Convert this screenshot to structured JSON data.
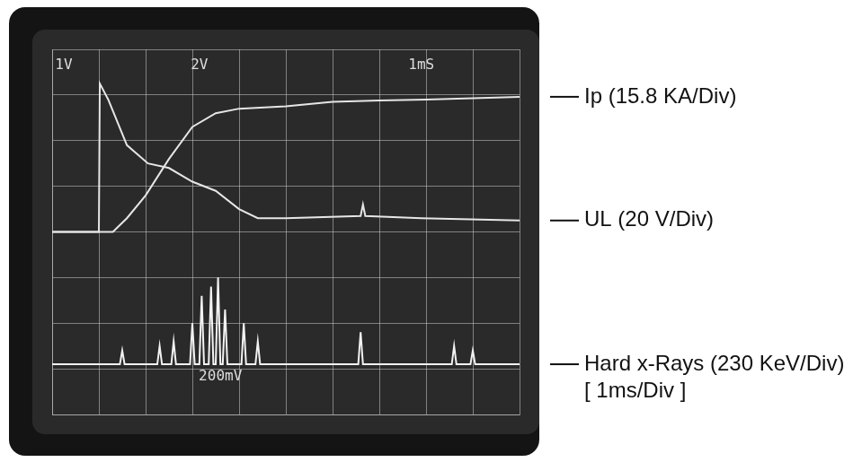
{
  "chart_data": {
    "type": "line",
    "xlim": [
      0,
      10
    ],
    "xticks": [
      0,
      1,
      2,
      3,
      4,
      5,
      6,
      7,
      8,
      9,
      10
    ],
    "ylim": [
      0,
      8
    ],
    "yticks": [
      0,
      1,
      2,
      3,
      4,
      5,
      6,
      7,
      8
    ],
    "grid": true,
    "tick_labels": false,
    "legend": "right",
    "annotations": [
      "1V",
      "2V",
      "1mS",
      "200mV",
      "[ 1ms/Div ]"
    ],
    "series": [
      {
        "name": "Ip (15.8 KA/Div)",
        "color": "#e6e6e6",
        "x": [
          0,
          1.3,
          1.6,
          2,
          2.5,
          3,
          3.5,
          4,
          5,
          6,
          7,
          8,
          10
        ],
        "values": [
          4,
          4,
          4.3,
          4.8,
          5.6,
          6.3,
          6.6,
          6.7,
          6.75,
          6.85,
          6.88,
          6.9,
          6.96
        ]
      },
      {
        "name": "UL (20 V/Div)",
        "color": "#e6e6e6",
        "x": [
          0,
          1.0,
          1.02,
          1.2,
          1.6,
          2.05,
          2.5,
          3,
          3.5,
          4,
          4.4,
          5,
          6.6,
          6.65,
          6.7,
          7.9,
          10
        ],
        "values": [
          4,
          4,
          7.25,
          6.9,
          5.9,
          5.5,
          5.4,
          5.1,
          4.9,
          4.5,
          4.3,
          4.3,
          4.35,
          4.6,
          4.35,
          4.3,
          4.25
        ]
      },
      {
        "name": "Hard x-Rays (230 KeV/Div)",
        "color": "#f2f2f2",
        "x": [
          0,
          1.45,
          1.5,
          1.55,
          2.25,
          2.3,
          2.35,
          2.55,
          2.6,
          2.65,
          2.95,
          3.0,
          3.05,
          3.15,
          3.2,
          3.25,
          3.35,
          3.4,
          3.45,
          3.5,
          3.55,
          3.6,
          3.65,
          3.7,
          3.75,
          4.05,
          4.1,
          4.15,
          4.35,
          4.4,
          4.45,
          6.55,
          6.6,
          6.65,
          8.55,
          8.6,
          8.65,
          8.95,
          9.0,
          9.05,
          10
        ],
        "values": [
          1.1,
          1.1,
          1.4,
          1.1,
          1.1,
          1.5,
          1.1,
          1.1,
          1.6,
          1.1,
          1.1,
          2.0,
          1.1,
          1.1,
          2.6,
          1.1,
          1.1,
          2.8,
          1.1,
          1.1,
          3.0,
          1.1,
          1.1,
          2.3,
          1.1,
          1.1,
          2.0,
          1.1,
          1.1,
          1.6,
          1.1,
          1.1,
          1.8,
          1.1,
          1.1,
          1.5,
          1.1,
          1.1,
          1.4,
          1.1,
          1.1
        ]
      }
    ]
  }
}
